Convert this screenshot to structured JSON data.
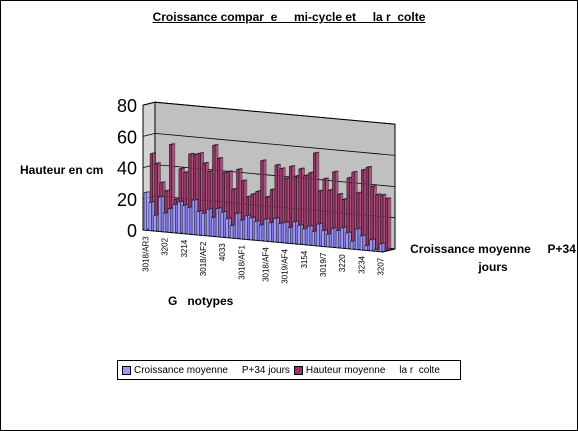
{
  "chart_data": {
    "type": "bar",
    "title": "Croissance compar  e     mi-cycle et     la r  colte",
    "ylabel": "Hauteur en cm",
    "xlabel": "G   notypes",
    "zlabel": "Croissance moyenne     P+34 jours",
    "ylim": [
      0,
      80
    ],
    "yticks": [
      0,
      20,
      40,
      60,
      80
    ],
    "grid": true,
    "legend_position": "bottom",
    "colors": {
      "croissance": "#9999ff",
      "hauteur": "#993366",
      "wall": "#c0c0c0",
      "floor": "#808080",
      "frame": "#000000"
    },
    "x_tick_labels": [
      "3018/AR3",
      "3202",
      "3214",
      "3018/AF2",
      "4033",
      "3018/AF1",
      "3018/AF4",
      "3019/AF4",
      "3154",
      "3019/7",
      "3220",
      "3234",
      "3207"
    ],
    "series": [
      {
        "name": "Croissance moyenne     P+34 jours",
        "values": [
          24,
          18,
          10,
          22,
          12,
          15,
          18,
          20,
          18,
          17,
          22,
          15,
          14,
          17,
          12,
          18,
          16,
          12,
          8,
          16,
          12,
          15,
          14,
          12,
          10,
          14,
          12,
          15,
          12,
          13,
          10,
          14,
          12,
          10,
          12,
          9,
          14,
          10,
          8,
          12,
          11,
          13,
          10,
          5,
          13,
          9,
          3,
          7,
          1,
          5
        ]
      },
      {
        "name": "Hauteur moyenne     la r  colte",
        "values": [
          48,
          42,
          30,
          25,
          55,
          20,
          40,
          38,
          50,
          50,
          51,
          45,
          40,
          57,
          49,
          40,
          41,
          30,
          43,
          36,
          26,
          28,
          30,
          50,
          27,
          32,
          48,
          46,
          40,
          48,
          42,
          47,
          43,
          45,
          58,
          34,
          42,
          35,
          47,
          33,
          30,
          44,
          48,
          35,
          50,
          52,
          40,
          35,
          35,
          33
        ]
      }
    ]
  }
}
